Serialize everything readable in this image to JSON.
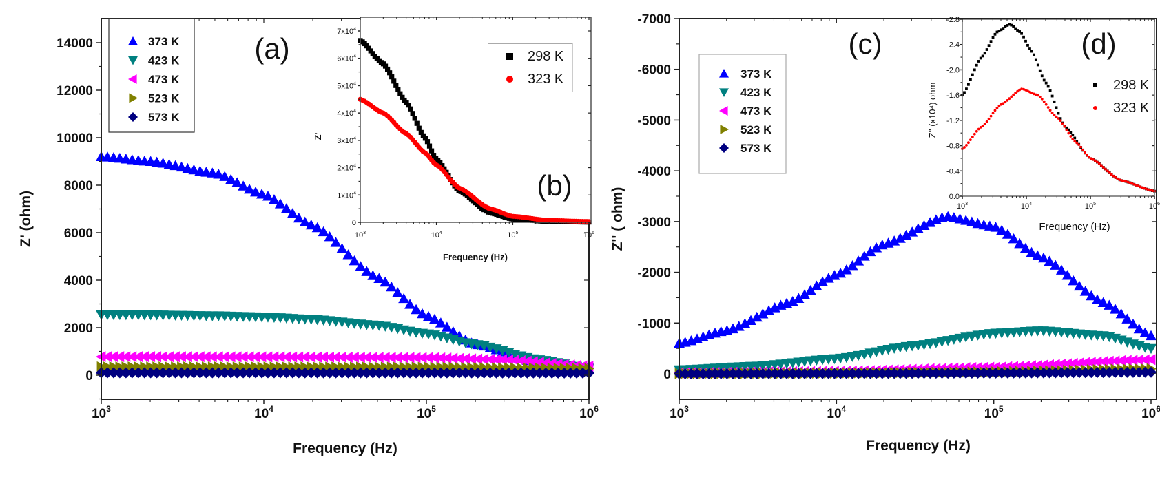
{
  "figure": {
    "panels": [
      "(a)",
      "(b)",
      "(c)",
      "(d)"
    ]
  },
  "chart_data": [
    {
      "id": "a",
      "panel_label": "(a)",
      "type": "scatter",
      "title": "",
      "xlabel": "Frequency (Hz)",
      "ylabel": "Z' (ohm)",
      "xscale": "log",
      "xlim": [
        1000,
        1000000
      ],
      "ylim": [
        -1000,
        15000
      ],
      "xticks": [
        {
          "v": 1000,
          "base": "10",
          "exp": "3"
        },
        {
          "v": 10000,
          "base": "10",
          "exp": "4"
        },
        {
          "v": 100000,
          "base": "10",
          "exp": "5"
        },
        {
          "v": 1000000,
          "base": "10",
          "exp": "6"
        }
      ],
      "yticks": [
        0,
        2000,
        4000,
        6000,
        8000,
        10000,
        12000,
        14000
      ],
      "ytick_labels": [
        "0",
        "2000",
        "4000",
        "6000",
        "8000",
        "10000",
        "12000",
        "14000"
      ],
      "legend_position": "top-left",
      "series": [
        {
          "name": "373 K",
          "marker": "triangle-up",
          "color": "#0000ff",
          "x": [
            1000,
            2000,
            5000,
            10000,
            20000,
            50000,
            100000,
            200000,
            500000,
            1000000
          ],
          "y": [
            9200,
            9000,
            8500,
            7600,
            6300,
            4100,
            2500,
            1300,
            500,
            250
          ]
        },
        {
          "name": "423 K",
          "marker": "triangle-down",
          "color": "#008080",
          "x": [
            1000,
            2000,
            5000,
            10000,
            20000,
            50000,
            100000,
            200000,
            500000,
            1000000
          ],
          "y": [
            2550,
            2540,
            2500,
            2450,
            2350,
            2100,
            1750,
            1300,
            650,
            300
          ]
        },
        {
          "name": "473 K",
          "marker": "triangle-left",
          "color": "#ff00ff",
          "x": [
            1000,
            10000,
            100000,
            300000,
            1000000
          ],
          "y": [
            780,
            770,
            740,
            650,
            380
          ]
        },
        {
          "name": "523 K",
          "marker": "triangle-right",
          "color": "#808000",
          "x": [
            1000,
            10000,
            100000,
            1000000
          ],
          "y": [
            350,
            345,
            335,
            280
          ]
        },
        {
          "name": "573 K",
          "marker": "diamond",
          "color": "#000080",
          "x": [
            1000,
            10000,
            100000,
            1000000
          ],
          "y": [
            100,
            100,
            98,
            90
          ]
        }
      ]
    },
    {
      "id": "b",
      "panel_label": "(b)",
      "type": "scatter",
      "inset_of": "a",
      "xlabel": "Frequency (Hz)",
      "ylabel": "Z'",
      "xscale": "log",
      "xlim": [
        1000,
        1000000
      ],
      "ylim": [
        0,
        70000
      ],
      "xticks": [
        {
          "v": 1000,
          "base": "10",
          "exp": "3"
        },
        {
          "v": 10000,
          "base": "10",
          "exp": "4"
        },
        {
          "v": 100000,
          "base": "10",
          "exp": "5"
        },
        {
          "v": 1000000,
          "base": "10",
          "exp": "6"
        }
      ],
      "yticks": [
        0,
        10000,
        20000,
        30000,
        40000,
        50000,
        60000,
        70000
      ],
      "ytick_labels": [
        {
          "m": "0",
          "exp": ""
        },
        {
          "m": "1x10",
          "exp": "4"
        },
        {
          "m": "2x10",
          "exp": "4"
        },
        {
          "m": "3x10",
          "exp": "4"
        },
        {
          "m": "4x10",
          "exp": "4"
        },
        {
          "m": "5x10",
          "exp": "4"
        },
        {
          "m": "6x10",
          "exp": "4"
        },
        {
          "m": "7x10",
          "exp": "4"
        }
      ],
      "legend_position": "top-right",
      "series": [
        {
          "name": "298 K",
          "marker": "square",
          "color": "#000000",
          "x": [
            1000,
            2000,
            4000,
            7000,
            10000,
            20000,
            50000,
            100000,
            300000,
            1000000
          ],
          "y": [
            66500,
            58000,
            44000,
            31000,
            23000,
            11500,
            3500,
            1200,
            300,
            100
          ]
        },
        {
          "name": "323 K",
          "marker": "circle",
          "color": "#ff0000",
          "x": [
            1000,
            2000,
            4000,
            7000,
            10000,
            20000,
            50000,
            100000,
            300000,
            1000000
          ],
          "y": [
            45000,
            40000,
            32500,
            25500,
            21000,
            12500,
            5000,
            2200,
            700,
            300
          ]
        }
      ]
    },
    {
      "id": "c",
      "panel_label": "(c)",
      "type": "scatter",
      "xlabel": "Frequency (Hz)",
      "ylabel": "Z'' ( ohm)",
      "xscale": "log",
      "xlim": [
        1000,
        1000000
      ],
      "ylim": [
        500,
        -7000
      ],
      "y_inverted": true,
      "xticks": [
        {
          "v": 1000,
          "base": "10",
          "exp": "3"
        },
        {
          "v": 10000,
          "base": "10",
          "exp": "4"
        },
        {
          "v": 100000,
          "base": "10",
          "exp": "5"
        },
        {
          "v": 1000000,
          "base": "10",
          "exp": "6"
        }
      ],
      "yticks": [
        0,
        -1000,
        -2000,
        -3000,
        -4000,
        -5000,
        -6000,
        -7000
      ],
      "ytick_labels": [
        "0",
        "-1000",
        "-2000",
        "-3000",
        "-4000",
        "-5000",
        "-6000",
        "-7000"
      ],
      "legend_position": "upper-left",
      "series": [
        {
          "name": "373 K",
          "marker": "triangle-up",
          "color": "#0000ff",
          "x": [
            1000,
            2000,
            5000,
            10000,
            20000,
            50000,
            100000,
            200000,
            500000,
            1000000
          ],
          "y": [
            -600,
            -850,
            -1400,
            -1950,
            -2550,
            -3100,
            -2900,
            -2300,
            -1400,
            -750
          ]
        },
        {
          "name": "423 K",
          "marker": "triangle-down",
          "color": "#008080",
          "x": [
            1000,
            3000,
            10000,
            30000,
            100000,
            200000,
            500000,
            1000000
          ],
          "y": [
            -80,
            -150,
            -300,
            -550,
            -800,
            -850,
            -750,
            -500
          ]
        },
        {
          "name": "473 K",
          "marker": "triangle-left",
          "color": "#ff00ff",
          "x": [
            1000,
            10000,
            100000,
            1000000
          ],
          "y": [
            -20,
            -50,
            -130,
            -280
          ]
        },
        {
          "name": "523 K",
          "marker": "triangle-right",
          "color": "#808000",
          "x": [
            1000,
            10000,
            100000,
            1000000
          ],
          "y": [
            -5,
            -15,
            -40,
            -100
          ]
        },
        {
          "name": "573 K",
          "marker": "diamond",
          "color": "#000080",
          "x": [
            1000,
            10000,
            100000,
            1000000
          ],
          "y": [
            0,
            -5,
            -15,
            -30
          ]
        }
      ]
    },
    {
      "id": "d",
      "panel_label": "(d)",
      "type": "scatter",
      "inset_of": "c",
      "xlabel": "Frequency (Hz)",
      "ylabel": "Z'' (x10⁴) ohm",
      "xscale": "log",
      "xlim": [
        1000,
        1000000
      ],
      "ylim": [
        0.0,
        -2.8
      ],
      "y_inverted": true,
      "xticks": [
        {
          "v": 1000,
          "base": "10",
          "exp": "3"
        },
        {
          "v": 10000,
          "base": "10",
          "exp": "4"
        },
        {
          "v": 100000,
          "base": "10",
          "exp": "5"
        },
        {
          "v": 1000000,
          "base": "10",
          "exp": "6"
        }
      ],
      "yticks": [
        0.0,
        -0.4,
        -0.8,
        -1.2,
        -1.6,
        -2.0,
        -2.4,
        -2.8
      ],
      "ytick_labels": [
        "0.0",
        "-0.4",
        "-0.8",
        "-1.2",
        "-1.6",
        "-2.0",
        "-2.4",
        "-2.8"
      ],
      "legend_position": "right",
      "series": [
        {
          "name": "298 K",
          "marker": "square",
          "color": "#000000",
          "x": [
            1000,
            2000,
            3500,
            5500,
            8000,
            12000,
            20000,
            40000,
            100000,
            300000,
            1000000
          ],
          "y": [
            -1.6,
            -2.2,
            -2.6,
            -2.72,
            -2.6,
            -2.3,
            -1.8,
            -1.1,
            -0.6,
            -0.25,
            -0.08
          ]
        },
        {
          "name": "323 K",
          "marker": "circle",
          "color": "#ff0000",
          "x": [
            1000,
            2000,
            4000,
            8500,
            15000,
            30000,
            60000,
            100000,
            300000,
            1000000
          ],
          "y": [
            -0.75,
            -1.1,
            -1.45,
            -1.7,
            -1.6,
            -1.25,
            -0.85,
            -0.6,
            -0.25,
            -0.08
          ]
        }
      ]
    }
  ]
}
